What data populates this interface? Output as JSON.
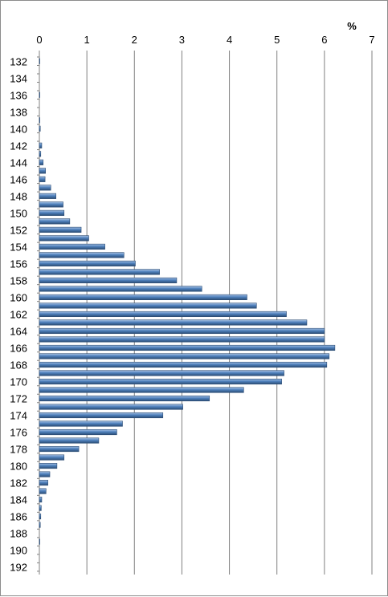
{
  "chart_data": {
    "type": "bar",
    "orientation": "horizontal",
    "unit_label": "%",
    "x_ticks": [
      "0",
      "1",
      "2",
      "3",
      "4",
      "5",
      "6",
      "7"
    ],
    "xlim": [
      0,
      7
    ],
    "grid": true,
    "legend": "none",
    "categories": [
      132,
      133,
      134,
      135,
      136,
      137,
      138,
      139,
      140,
      141,
      142,
      143,
      144,
      145,
      146,
      147,
      148,
      149,
      150,
      151,
      152,
      153,
      154,
      155,
      156,
      157,
      158,
      159,
      160,
      161,
      162,
      163,
      164,
      165,
      166,
      167,
      168,
      169,
      170,
      171,
      172,
      173,
      174,
      175,
      176,
      177,
      178,
      179,
      180,
      181,
      182,
      183,
      184,
      185,
      186,
      187,
      188,
      189,
      190,
      191,
      192
    ],
    "y_tick_labels": [
      "132",
      "134",
      "136",
      "138",
      "140",
      "142",
      "144",
      "146",
      "148",
      "150",
      "152",
      "154",
      "156",
      "158",
      "160",
      "162",
      "164",
      "166",
      "168",
      "170",
      "172",
      "174",
      "176",
      "178",
      "180",
      "182",
      "184",
      "186",
      "188",
      "190",
      "192"
    ],
    "values": [
      0.01,
      0,
      0,
      0,
      0.01,
      0,
      0,
      0.01,
      0.02,
      0,
      0.05,
      0.03,
      0.08,
      0.13,
      0.12,
      0.24,
      0.35,
      0.5,
      0.52,
      0.64,
      0.88,
      1.04,
      1.38,
      1.78,
      2.02,
      2.53,
      2.89,
      3.42,
      4.37,
      4.57,
      5.2,
      5.63,
      6.0,
      6.0,
      6.22,
      6.1,
      6.05,
      5.15,
      5.1,
      4.3,
      3.58,
      3.02,
      2.6,
      1.75,
      1.63,
      1.25,
      0.83,
      0.52,
      0.37,
      0.22,
      0.18,
      0.14,
      0.05,
      0.04,
      0.03,
      0.02,
      0,
      0.01,
      0,
      0,
      0
    ],
    "colors": {
      "bar": "#4f81bd",
      "bar_light": "#a7c1e3",
      "bar_dark": "#2c4d75",
      "grid": "#808080",
      "axis": "#808080"
    }
  }
}
